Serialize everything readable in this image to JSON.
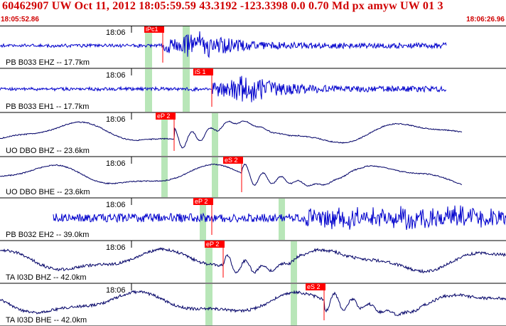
{
  "header": {
    "title": "60462907 UW Oct 11, 2012 18:05:59.59   43.3192 -123.3398  0.0 0.70 Md px amyw UW 01   3",
    "start_time": "18:05:52.86",
    "end_time": "18:06:26.96"
  },
  "colors": {
    "header_text": "#d00000",
    "trace_blue": "#0000cc",
    "trace_navy": "#000066",
    "pick_red": "#ff0000",
    "window_green": "#b8e6b8"
  },
  "traces": [
    {
      "label": "PB B033 EHZ -- 17.7km",
      "tick": "18:06",
      "color_key": "trace_blue",
      "pick": "iPc1"
    },
    {
      "label": "PB B033 EH1 -- 17.7km",
      "tick": "18:06",
      "color_key": "trace_blue",
      "pick": "iS 1"
    },
    {
      "label": "UO DBO BHZ -- 23.6km",
      "tick": "18:06",
      "color_key": "trace_navy",
      "pick": "eP 2"
    },
    {
      "label": "UO DBO BHE -- 23.6km",
      "tick": "18:06",
      "color_key": "trace_navy",
      "pick": "eS 2"
    },
    {
      "label": "PB B032 EH2 -- 39.0km",
      "tick": "18:06",
      "color_key": "trace_blue",
      "pick": "eP 2"
    },
    {
      "label": "TA I03D BHZ -- 42.0km",
      "tick": "18:06",
      "color_key": "trace_navy",
      "pick": "eP 2"
    },
    {
      "label": "TA I03D BHE -- 42.0km",
      "tick": "18:06",
      "color_key": "trace_navy",
      "pick": "eS 2"
    }
  ]
}
